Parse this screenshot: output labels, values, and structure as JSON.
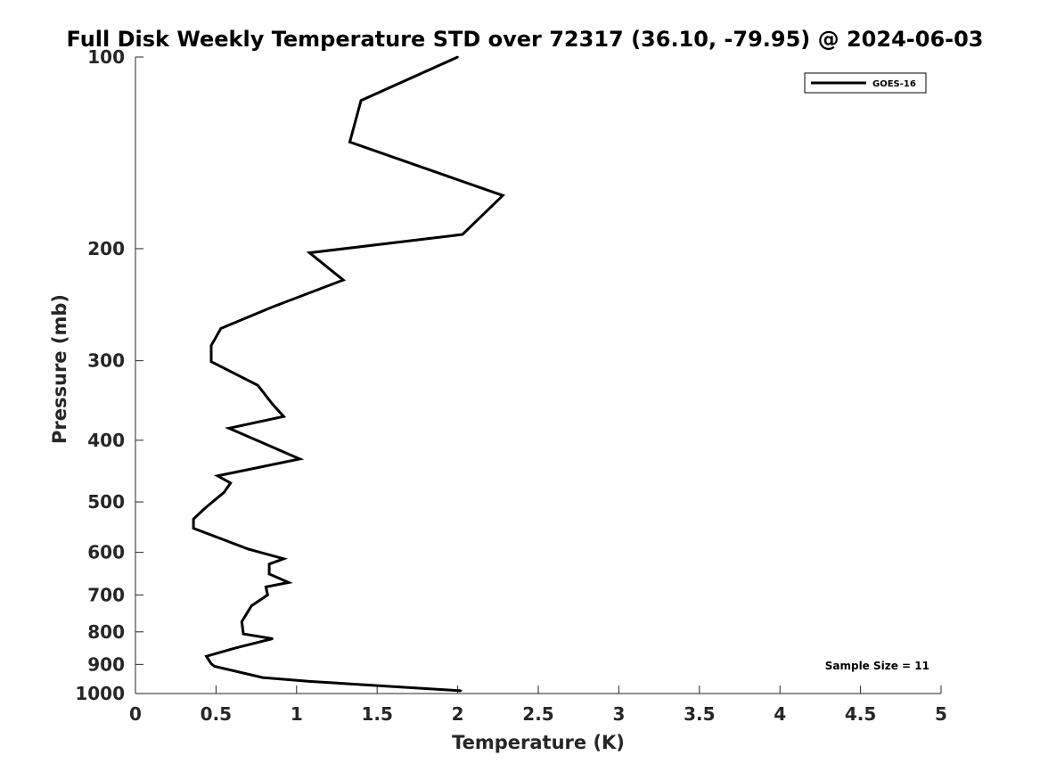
{
  "chart_data": {
    "type": "line",
    "title": "Full Disk Weekly Temperature STD over 72317 (36.10, -79.95) @ 2024-06-03",
    "xlabel": "Temperature (K)",
    "ylabel": "Pressure (mb)",
    "xlim": [
      0,
      5
    ],
    "ylim": [
      100,
      1000
    ],
    "y_scale": "log",
    "y_reversed": true,
    "x_ticks": [
      "0",
      "0.5",
      "1",
      "1.5",
      "2",
      "2.5",
      "3",
      "3.5",
      "4",
      "4.5",
      "5"
    ],
    "y_ticks": [
      "100",
      "200",
      "300",
      "400",
      "500",
      "600",
      "700",
      "800",
      "900",
      "1000"
    ],
    "grid": false,
    "legend_position": "top-right",
    "series": [
      {
        "name": "GOES-16",
        "color": "#000000",
        "points": [
          [
            2.0,
            100
          ],
          [
            1.4,
            117
          ],
          [
            1.33,
            136
          ],
          [
            2.28,
            165
          ],
          [
            2.03,
            190
          ],
          [
            1.08,
            203
          ],
          [
            1.29,
            224
          ],
          [
            0.85,
            247
          ],
          [
            0.53,
            267
          ],
          [
            0.47,
            284
          ],
          [
            0.47,
            301
          ],
          [
            0.76,
            328
          ],
          [
            0.85,
            351
          ],
          [
            0.92,
            367
          ],
          [
            0.58,
            383
          ],
          [
            0.84,
            409
          ],
          [
            1.02,
            428
          ],
          [
            0.51,
            455
          ],
          [
            0.59,
            467
          ],
          [
            0.55,
            483
          ],
          [
            0.43,
            512
          ],
          [
            0.36,
            532
          ],
          [
            0.36,
            550
          ],
          [
            0.7,
            593
          ],
          [
            0.92,
            614
          ],
          [
            0.83,
            626
          ],
          [
            0.83,
            649
          ],
          [
            0.95,
            669
          ],
          [
            0.81,
            680
          ],
          [
            0.82,
            700
          ],
          [
            0.72,
            728
          ],
          [
            0.66,
            771
          ],
          [
            0.67,
            806
          ],
          [
            0.85,
            820
          ],
          [
            0.62,
            848
          ],
          [
            0.44,
            874
          ],
          [
            0.47,
            898
          ],
          [
            0.49,
            906
          ],
          [
            0.79,
            944
          ],
          [
            1.08,
            957
          ],
          [
            2.02,
            990
          ]
        ]
      }
    ],
    "annotations": [
      "Sample Size = 11"
    ]
  }
}
